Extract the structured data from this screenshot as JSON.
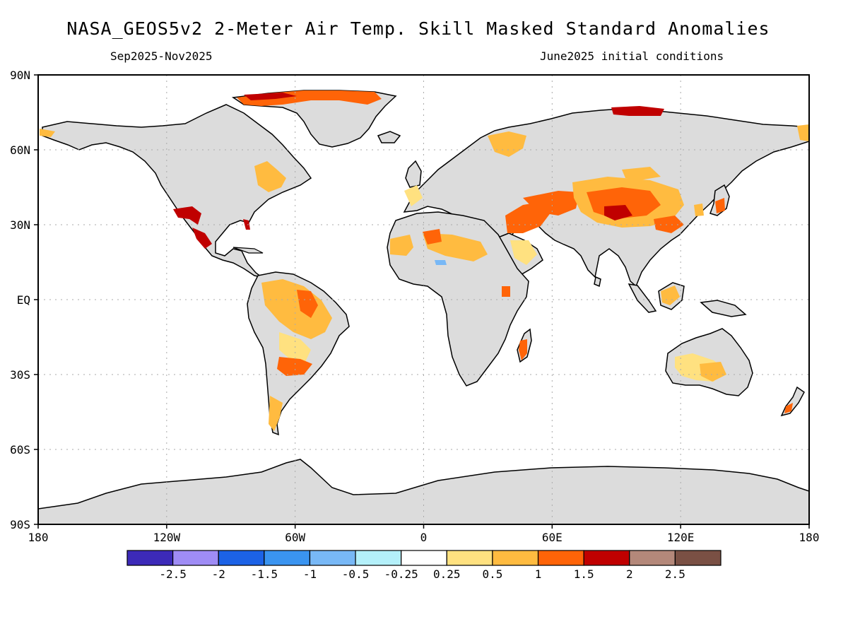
{
  "title": "NASA_GEOS5v2 2-Meter Air Temp. Skill Masked Standard Anomalies",
  "subtitle_left": "Sep2025-Nov2025",
  "subtitle_right": "June2025 initial conditions",
  "colors": {
    "land": "#dcdcdc",
    "ocean": "#ffffff",
    "coastline": "#000000",
    "grid": "#aaaaaa",
    "anom_0_25": "#ffe180",
    "anom_0_5": "#ffbb40",
    "anom_1": "#ff6408",
    "anom_1_5": "#c00000",
    "anom_2": "#b4887a",
    "anom_neg": "#b4f0fa"
  },
  "map": {
    "projection": "latitude-longitude",
    "lon_range": [
      -180,
      180
    ],
    "lat_range": [
      -90,
      90
    ],
    "x_ticks": [
      {
        "lon": -180,
        "label": "180"
      },
      {
        "lon": -120,
        "label": "120W"
      },
      {
        "lon": -60,
        "label": "60W"
      },
      {
        "lon": 0,
        "label": "0"
      },
      {
        "lon": 60,
        "label": "60E"
      },
      {
        "lon": 120,
        "label": "120E"
      },
      {
        "lon": 180,
        "label": "180"
      }
    ],
    "y_ticks": [
      {
        "lat": 90,
        "label": "90N"
      },
      {
        "lat": 60,
        "label": "60N"
      },
      {
        "lat": 30,
        "label": "30N"
      },
      {
        "lat": 0,
        "label": "EQ"
      },
      {
        "lat": -30,
        "label": "30S"
      },
      {
        "lat": -60,
        "label": "60S"
      },
      {
        "lat": -90,
        "label": "90S"
      }
    ],
    "grid": "dotted",
    "legend_placement": "bottom"
  },
  "colorbar": {
    "bins": [
      {
        "color": "#3c2ab8"
      },
      {
        "color": "#9f8cf5"
      },
      {
        "color": "#1c62e6"
      },
      {
        "color": "#3a94f0"
      },
      {
        "color": "#78b8f6"
      },
      {
        "color": "#b4f0fa"
      },
      {
        "color": "#ffffff"
      },
      {
        "color": "#ffe180"
      },
      {
        "color": "#ffbb40"
      },
      {
        "color": "#ff6408"
      },
      {
        "color": "#c00000"
      },
      {
        "color": "#b4887a"
      },
      {
        "color": "#7a5044"
      }
    ],
    "labels": [
      "-2.5",
      "-2",
      "-1.5",
      "-1",
      "-0.5",
      "-0.25",
      "0.25",
      "0.5",
      "1",
      "1.5",
      "2",
      "2.5"
    ]
  }
}
